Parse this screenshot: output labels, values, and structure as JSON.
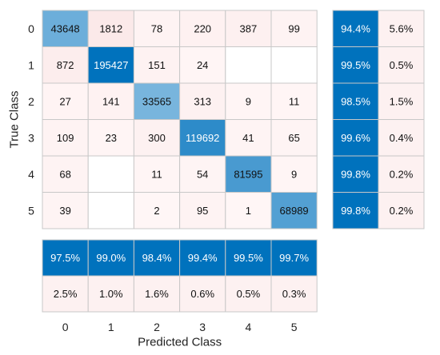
{
  "chart_data": {
    "type": "heatmap",
    "subtype": "confusion-matrix",
    "xlabel": "Predicted Class",
    "ylabel": "True Class",
    "classes": [
      "0",
      "1",
      "2",
      "3",
      "4",
      "5"
    ],
    "matrix": [
      [
        43648,
        1812,
        78,
        220,
        387,
        99
      ],
      [
        872,
        195427,
        151,
        24,
        null,
        null
      ],
      [
        27,
        141,
        33565,
        313,
        9,
        11
      ],
      [
        109,
        23,
        300,
        119692,
        41,
        65
      ],
      [
        68,
        null,
        11,
        54,
        81595,
        9
      ],
      [
        39,
        null,
        2,
        95,
        1,
        68989
      ]
    ],
    "row_summary": {
      "correct": [
        "94.4%",
        "99.5%",
        "98.5%",
        "99.6%",
        "99.8%",
        "99.8%"
      ],
      "incorrect": [
        "5.6%",
        "0.5%",
        "1.5%",
        "0.4%",
        "0.2%",
        "0.2%"
      ]
    },
    "column_summary": {
      "correct": [
        "97.5%",
        "99.0%",
        "98.4%",
        "99.4%",
        "99.5%",
        "99.7%"
      ],
      "incorrect": [
        "2.5%",
        "1.0%",
        "1.6%",
        "0.6%",
        "0.5%",
        "0.3%"
      ]
    },
    "colors": {
      "diagonal_max": "#0072bd",
      "diagonal_min": "#cde4f4",
      "offdiag_min": "#fff6f6",
      "offdiag_max": "#fbe9e9",
      "summary_correct": "#0072bd",
      "summary_incorrect": "#fdf1f1",
      "grid": "#c8c8c8"
    }
  }
}
